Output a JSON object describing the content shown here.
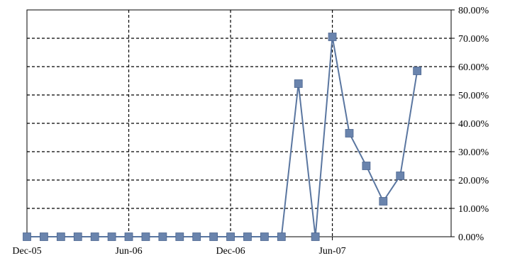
{
  "chart_data": {
    "type": "line",
    "title": "",
    "xlabel": "",
    "ylabel": "",
    "x_tick_labels": [
      "Dec-05",
      "Jun-06",
      "Dec-06",
      "Jun-07"
    ],
    "x_tick_dates": [
      "2005-12",
      "2006-06",
      "2006-12",
      "2007-06"
    ],
    "y_tick_labels": [
      "0.00%",
      "10.00%",
      "20.00%",
      "30.00%",
      "40.00%",
      "50.00%",
      "60.00%",
      "70.00%",
      "80.00%"
    ],
    "ylim": [
      0,
      0.8
    ],
    "xlim": [
      "2005-12",
      "2008-01"
    ],
    "y_axis_position": "right",
    "grid": true,
    "legend": "none",
    "colors": {
      "series": "#5a76a0",
      "marker": "#6a84ad",
      "grid": "#000000"
    },
    "x": [
      "2005-12",
      "2006-01",
      "2006-02",
      "2006-03",
      "2006-04",
      "2006-05",
      "2006-06",
      "2006-07",
      "2006-08",
      "2006-09",
      "2006-10",
      "2006-11",
      "2006-12",
      "2007-01",
      "2007-02",
      "2007-03",
      "2007-04",
      "2007-05",
      "2007-06",
      "2007-07",
      "2007-08",
      "2007-09",
      "2007-10",
      "2007-11",
      "2007-12"
    ],
    "series": [
      {
        "values": [
          0,
          0,
          0,
          0,
          0,
          0,
          0,
          0,
          0,
          0,
          0,
          0,
          0,
          0,
          0,
          0,
          0.54,
          0,
          0.705,
          0.365,
          0.25,
          0.125,
          0.215,
          0.585,
          null
        ]
      }
    ]
  }
}
